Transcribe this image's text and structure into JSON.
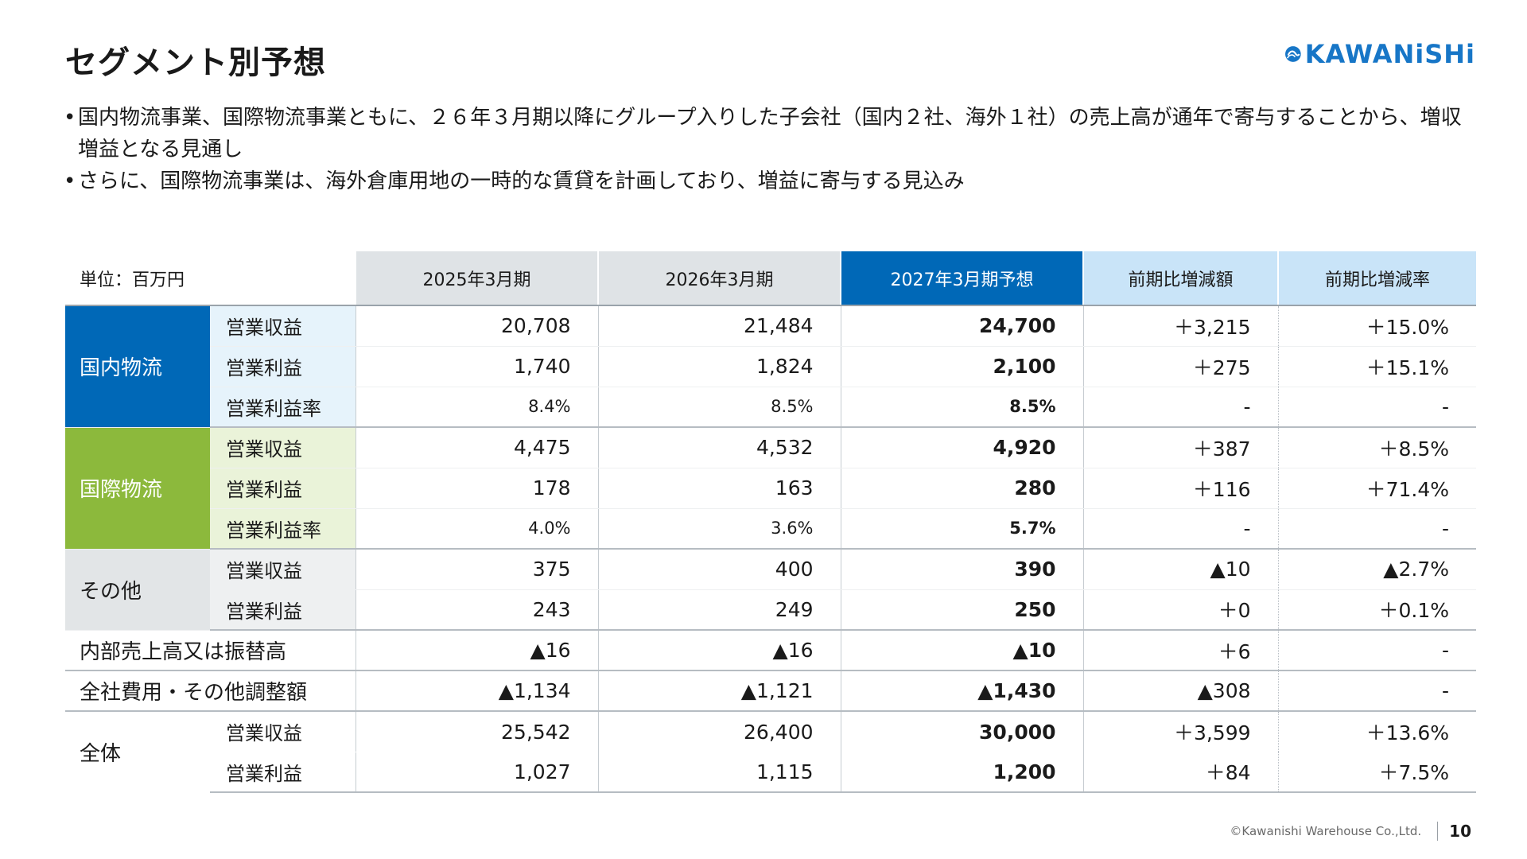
{
  "title": "セグメント別予想",
  "logo": {
    "text": "KAWANiSHi",
    "color": "#1776c7"
  },
  "bullets": [
    "国内物流事業、国際物流事業ともに、２６年３月期以降にグループ入りした子会社（国内２社、海外１社）の売上高が通年で寄与することから、増収増益となる見通し",
    "さらに、国際物流事業は、海外倉庫用地の一時的な賃貸を計画しており、増益に寄与する見込み"
  ],
  "bullet_mark": "•",
  "table": {
    "unit": "単位：百万円",
    "headers": [
      "2025年3月期",
      "2026年3月期",
      "2027年3月期予想",
      "前期比増減額",
      "前期比増減率"
    ],
    "domestic": {
      "name": "国内物流",
      "rows": [
        {
          "item": "営業収益",
          "v": [
            "20,708",
            "21,484",
            "24,700",
            "＋3,215",
            "＋15.0%"
          ]
        },
        {
          "item": "営業利益",
          "v": [
            "1,740",
            "1,824",
            "2,100",
            "＋275",
            "＋15.1%"
          ]
        },
        {
          "item": "営業利益率",
          "v": [
            "8.4%",
            "8.5%",
            "8.5%",
            "-",
            "-"
          ]
        }
      ]
    },
    "international": {
      "name": "国際物流",
      "rows": [
        {
          "item": "営業収益",
          "v": [
            "4,475",
            "4,532",
            "4,920",
            "＋387",
            "＋8.5%"
          ]
        },
        {
          "item": "営業利益",
          "v": [
            "178",
            "163",
            "280",
            "＋116",
            "＋71.4%"
          ]
        },
        {
          "item": "営業利益率",
          "v": [
            "4.0%",
            "3.6%",
            "5.7%",
            "-",
            "-"
          ]
        }
      ]
    },
    "other": {
      "name": "その他",
      "rows": [
        {
          "item": "営業収益",
          "v": [
            "375",
            "400",
            "390",
            "▲10",
            "▲2.7%"
          ]
        },
        {
          "item": "営業利益",
          "v": [
            "243",
            "249",
            "250",
            "＋0",
            "＋0.1%"
          ]
        }
      ]
    },
    "internal": {
      "name": "内部売上高又は振替高",
      "v": [
        "▲16",
        "▲16",
        "▲10",
        "＋6",
        "-"
      ]
    },
    "corporate": {
      "name": "全社費用・その他調整額",
      "v": [
        "▲1,134",
        "▲1,121",
        "▲1,430",
        "▲308",
        "-"
      ]
    },
    "total": {
      "name": "全体",
      "rows": [
        {
          "item": "営業収益",
          "v": [
            "25,542",
            "26,400",
            "30,000",
            "＋3,599",
            "＋13.6%"
          ]
        },
        {
          "item": "営業利益",
          "v": [
            "1,027",
            "1,115",
            "1,200",
            "＋84",
            "＋7.5%"
          ]
        }
      ]
    }
  },
  "footer": {
    "copyright": "©Kawanishi Warehouse Co.,Ltd.",
    "page": "10"
  },
  "colors": {
    "domestic": "#0068b7",
    "international": "#8cb93c",
    "forecast_header": "#0068b7"
  }
}
